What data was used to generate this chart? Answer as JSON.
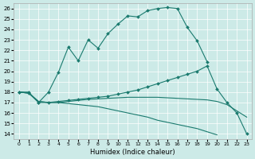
{
  "title": "",
  "xlabel": "Humidex (Indice chaleur)",
  "bg_color": "#cceae7",
  "line_color": "#1a7a6e",
  "xlim": [
    -0.5,
    23.5
  ],
  "ylim": [
    13.5,
    26.5
  ],
  "xticks": [
    0,
    1,
    2,
    3,
    4,
    5,
    6,
    7,
    8,
    9,
    10,
    11,
    12,
    13,
    14,
    15,
    16,
    17,
    18,
    19,
    20,
    21,
    22,
    23
  ],
  "yticks": [
    14,
    15,
    16,
    17,
    18,
    19,
    20,
    21,
    22,
    23,
    24,
    25,
    26
  ],
  "line1_x": [
    0,
    1,
    2,
    3,
    4,
    5,
    6,
    7,
    8,
    9,
    10,
    11,
    12,
    13,
    14,
    15,
    16,
    17,
    18,
    19
  ],
  "line1_y": [
    18.0,
    17.9,
    17.0,
    18.0,
    19.9,
    22.3,
    21.0,
    23.0,
    22.2,
    23.6,
    24.5,
    25.3,
    25.2,
    25.8,
    26.0,
    26.1,
    26.0,
    24.2,
    22.9,
    20.9
  ],
  "line2_x": [
    0,
    1,
    2,
    3,
    4,
    5,
    6,
    7,
    8,
    9,
    10,
    11,
    12,
    13,
    14,
    15,
    16,
    17,
    18,
    19,
    20,
    21,
    22,
    23
  ],
  "line2_y": [
    18.0,
    18.0,
    17.0,
    17.0,
    17.1,
    17.2,
    17.3,
    17.4,
    17.5,
    17.6,
    17.8,
    18.0,
    18.2,
    18.5,
    18.8,
    19.1,
    19.4,
    19.7,
    20.0,
    20.5,
    18.3,
    17.0,
    16.0,
    14.0
  ],
  "line3_x": [
    0,
    1,
    2,
    3,
    4,
    5,
    6,
    7,
    8,
    9,
    10,
    11,
    12,
    13,
    14,
    15,
    16,
    17,
    18,
    19,
    20,
    21,
    22,
    23
  ],
  "line3_y": [
    18.0,
    17.9,
    17.1,
    17.0,
    17.0,
    17.1,
    17.2,
    17.3,
    17.35,
    17.4,
    17.45,
    17.5,
    17.5,
    17.5,
    17.5,
    17.45,
    17.4,
    17.35,
    17.3,
    17.25,
    17.1,
    16.8,
    16.2,
    15.6
  ],
  "line4_x": [
    0,
    1,
    2,
    3,
    4,
    5,
    6,
    7,
    8,
    9,
    10,
    11,
    12,
    13,
    14,
    15,
    16,
    17,
    18,
    19,
    20
  ],
  "line4_y": [
    18.0,
    17.9,
    17.1,
    17.0,
    17.0,
    16.9,
    16.8,
    16.7,
    16.6,
    16.4,
    16.2,
    16.0,
    15.8,
    15.6,
    15.3,
    15.1,
    14.9,
    14.7,
    14.5,
    14.2,
    13.9
  ]
}
